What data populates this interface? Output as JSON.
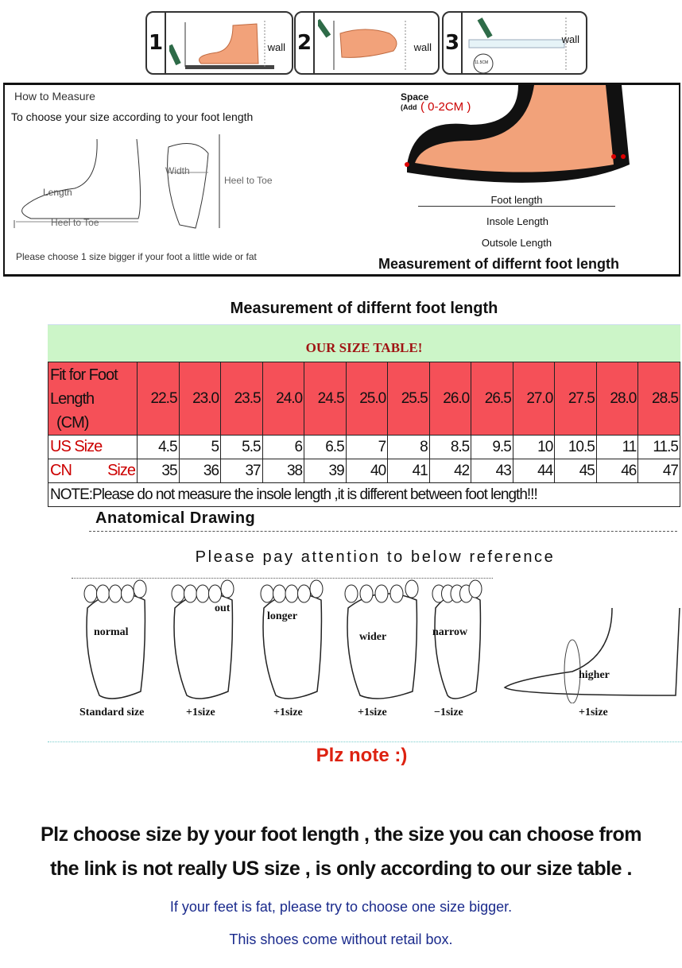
{
  "steps": [
    {
      "number": "1",
      "wall_label": "wall"
    },
    {
      "number": "2",
      "wall_label": "wall"
    },
    {
      "number": "3",
      "wall_label": "wall",
      "ruler_label": "11.5CM"
    }
  ],
  "how_to": {
    "title": "How to Measure",
    "subtitle": "To choose your size according to your foot length",
    "length_label": "Length",
    "heel_to_toe_side": "Heel to Toe",
    "width_label": "Width",
    "heel_to_toe_sole": "Heel to Toe",
    "tip": "Please choose 1 size bigger if your foot a little wide or fat",
    "space_label": "Space",
    "space_add": "(Add",
    "space_value": "( 0-2CM )",
    "foot_length": "Foot length",
    "insole_length": "Insole Length",
    "outsole_length": "Outsole Length",
    "diagram_caption": "Measurement of differnt foot length"
  },
  "size_section": {
    "title": "Measurement of differnt foot length",
    "table_title": "OUR SIZE TABLE!",
    "header_label_lines": [
      "Fit for Foot",
      "Length",
      "(CM)"
    ],
    "foot_length_cm": [
      "22.5",
      "23.0",
      "23.5",
      "24.0",
      "24.5",
      "25.0",
      "25.5",
      "26.0",
      "26.5",
      "27.0",
      "27.5",
      "28.0",
      "28.5"
    ],
    "us_label": "US Size",
    "us_sizes": [
      "4.5",
      "5",
      "5.5",
      "6",
      "6.5",
      "7",
      "8",
      "8.5",
      "9.5",
      "10",
      "10.5",
      "11",
      "11.5"
    ],
    "cn_label_a": "CN",
    "cn_label_b": "Size",
    "cn_sizes": [
      "35",
      "36",
      "37",
      "38",
      "39",
      "40",
      "41",
      "42",
      "43",
      "44",
      "45",
      "46",
      "47"
    ],
    "note": "NOTE:Please do not measure the insole length ,it is different between foot length!!!"
  },
  "anatomy": {
    "title": "Anatomical Drawing",
    "subtitle": "Please pay attention to below reference",
    "feet": [
      {
        "inner": "normal",
        "size": "Standard size"
      },
      {
        "inner": "out",
        "size": "+1size"
      },
      {
        "inner": "longer",
        "size": "+1size"
      },
      {
        "inner": "wider",
        "size": "+1size"
      },
      {
        "inner": "narrow",
        "size": "−1size"
      },
      {
        "inner": "higher",
        "size": "+1size"
      }
    ]
  },
  "notes": {
    "heading": "Plz note :)",
    "line1": "Plz choose size by your foot length , the size you can choose from",
    "line2": "the link is not really US size , is only according to our size table .",
    "line3": "If your feet is fat, please try to choose one size bigger.",
    "line4": "This shoes come without retail box."
  },
  "colors": {
    "header_red": "#f55058",
    "title_green": "#ccf5c8",
    "table_title": "#a01414",
    "label_red": "#cc0000",
    "note_blue": "#1a2a8c",
    "skin": "#f2a27a"
  }
}
